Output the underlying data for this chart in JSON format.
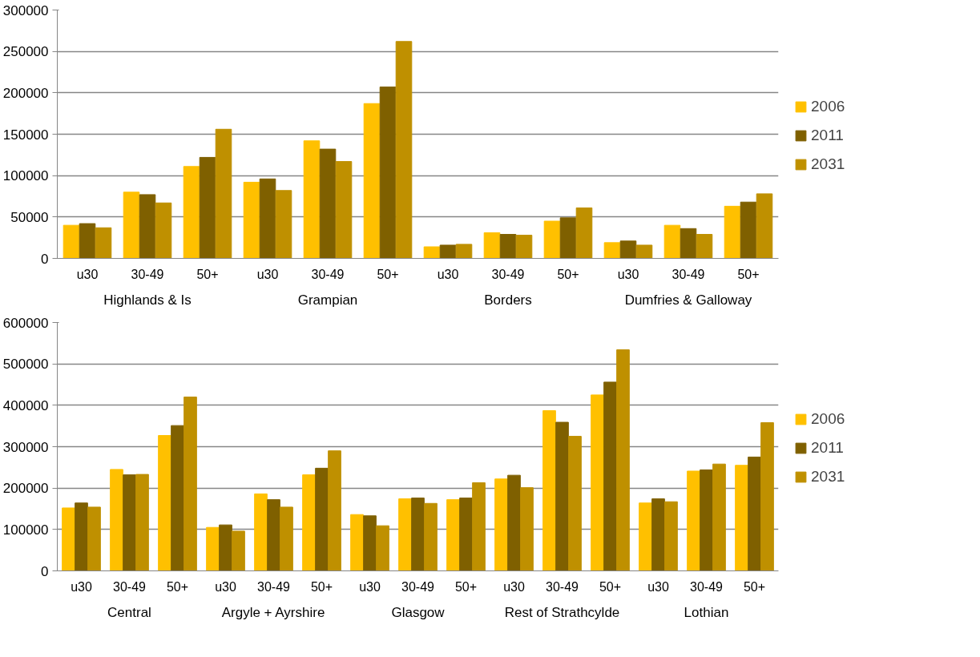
{
  "chart_data": [
    {
      "type": "bar",
      "categories": [
        "u30",
        "30-49",
        "50+",
        "u30",
        "30-49",
        "50+",
        "u30",
        "30-49",
        "50+",
        "u30",
        "30-49",
        "50+"
      ],
      "annotations": [
        "Highlands & Is",
        "Grampian",
        "Borders",
        "Dumfries & Galloway"
      ],
      "series": [
        {
          "name": "2006",
          "color": "#ffc000",
          "values": [
            40000,
            80000,
            111000,
            92000,
            142000,
            187000,
            14000,
            31000,
            45000,
            19000,
            40000,
            63000
          ]
        },
        {
          "name": "2011",
          "color": "#7f6000",
          "values": [
            42000,
            77000,
            122000,
            96000,
            132000,
            207000,
            16000,
            29000,
            49000,
            21000,
            36000,
            68000
          ]
        },
        {
          "name": "2031",
          "color": "#bf9000",
          "values": [
            37000,
            67000,
            156000,
            82000,
            117000,
            262000,
            17000,
            28000,
            61000,
            16000,
            29000,
            78000
          ]
        }
      ],
      "ylim": [
        0,
        300000
      ],
      "yticks": [
        0,
        50000,
        100000,
        150000,
        200000,
        250000,
        300000
      ],
      "grid": "y",
      "legend": "right"
    },
    {
      "type": "bar",
      "categories": [
        "u30",
        "30-49",
        "50+",
        "u30",
        "30-49",
        "50+",
        "u30",
        "30-49",
        "50+",
        "u30",
        "30-49",
        "50+",
        "u30",
        "30-49",
        "50+"
      ],
      "annotations": [
        "Central",
        "Argyle + Ayrshire",
        "Glasgow",
        "Rest of Strathcylde",
        "Lothian"
      ],
      "series": [
        {
          "name": "2006",
          "color": "#ffc000",
          "values": [
            152000,
            245000,
            327000,
            105000,
            186000,
            232000,
            136000,
            174000,
            172000,
            222000,
            387000,
            425000,
            164000,
            241000,
            255000
          ]
        },
        {
          "name": "2011",
          "color": "#7f6000",
          "values": [
            164000,
            232000,
            351000,
            111000,
            172000,
            248000,
            133000,
            176000,
            176000,
            231000,
            359000,
            456000,
            174000,
            244000,
            275000
          ]
        },
        {
          "name": "2031",
          "color": "#bf9000",
          "values": [
            154000,
            233000,
            420000,
            96000,
            154000,
            290000,
            109000,
            163000,
            213000,
            201000,
            325000,
            534000,
            167000,
            258000,
            358000
          ]
        }
      ],
      "ylim": [
        0,
        600000
      ],
      "yticks": [
        0,
        100000,
        200000,
        300000,
        400000,
        500000,
        600000
      ],
      "grid": "y",
      "legend": "right"
    }
  ]
}
